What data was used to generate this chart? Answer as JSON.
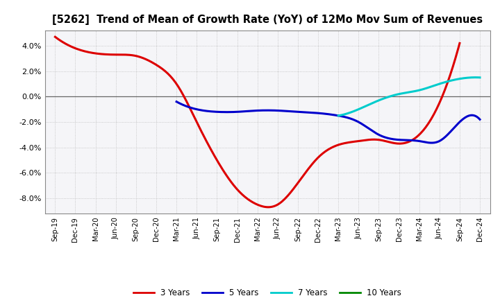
{
  "title": "[5262]  Trend of Mean of Growth Rate (YoY) of 12Mo Mov Sum of Revenues",
  "xlabels": [
    "Sep-19",
    "Dec-19",
    "Mar-20",
    "Jun-20",
    "Sep-20",
    "Dec-20",
    "Mar-21",
    "Jun-21",
    "Sep-21",
    "Dec-21",
    "Mar-22",
    "Jun-22",
    "Sep-22",
    "Dec-22",
    "Mar-23",
    "Jun-23",
    "Sep-23",
    "Dec-23",
    "Mar-24",
    "Jun-24",
    "Sep-24",
    "Dec-24"
  ],
  "ylim": [
    -0.092,
    0.052
  ],
  "yticks": [
    -0.08,
    -0.06,
    -0.04,
    -0.02,
    0.0,
    0.02,
    0.04
  ],
  "series_3y": {
    "label": "3 Years",
    "color": "#dd0000",
    "x": [
      0,
      1,
      2,
      3,
      4,
      5,
      6,
      7,
      8,
      9,
      10,
      11,
      12,
      13,
      14,
      15,
      16,
      17,
      18,
      19,
      20
    ],
    "y": [
      0.047,
      0.038,
      0.034,
      0.033,
      0.032,
      0.025,
      0.01,
      -0.02,
      -0.05,
      -0.073,
      -0.085,
      -0.085,
      -0.068,
      -0.048,
      -0.038,
      -0.035,
      -0.034,
      -0.037,
      -0.03,
      -0.005,
      0.042
    ]
  },
  "series_5y": {
    "label": "5 Years",
    "color": "#0000cc",
    "x": [
      6,
      7,
      8,
      9,
      10,
      11,
      12,
      13,
      14,
      15,
      16,
      17,
      18,
      19,
      20,
      21
    ],
    "y": [
      -0.004,
      -0.01,
      -0.012,
      -0.012,
      -0.011,
      -0.011,
      -0.012,
      -0.013,
      -0.015,
      -0.02,
      -0.03,
      -0.034,
      -0.035,
      -0.035,
      -0.02,
      -0.018
    ]
  },
  "series_7y": {
    "label": "7 Years",
    "color": "#00cccc",
    "x": [
      14,
      15,
      16,
      17,
      18,
      19,
      20,
      21
    ],
    "y": [
      -0.015,
      -0.01,
      -0.003,
      0.002,
      0.005,
      0.01,
      0.014,
      0.015
    ]
  },
  "series_10y": {
    "label": "10 Years",
    "color": "#008800",
    "x": [],
    "y": []
  },
  "background_color": "#ffffff",
  "plot_bg_color": "#f5f5f8",
  "grid_color": "#bbbbbb",
  "frame_color": "#888888"
}
